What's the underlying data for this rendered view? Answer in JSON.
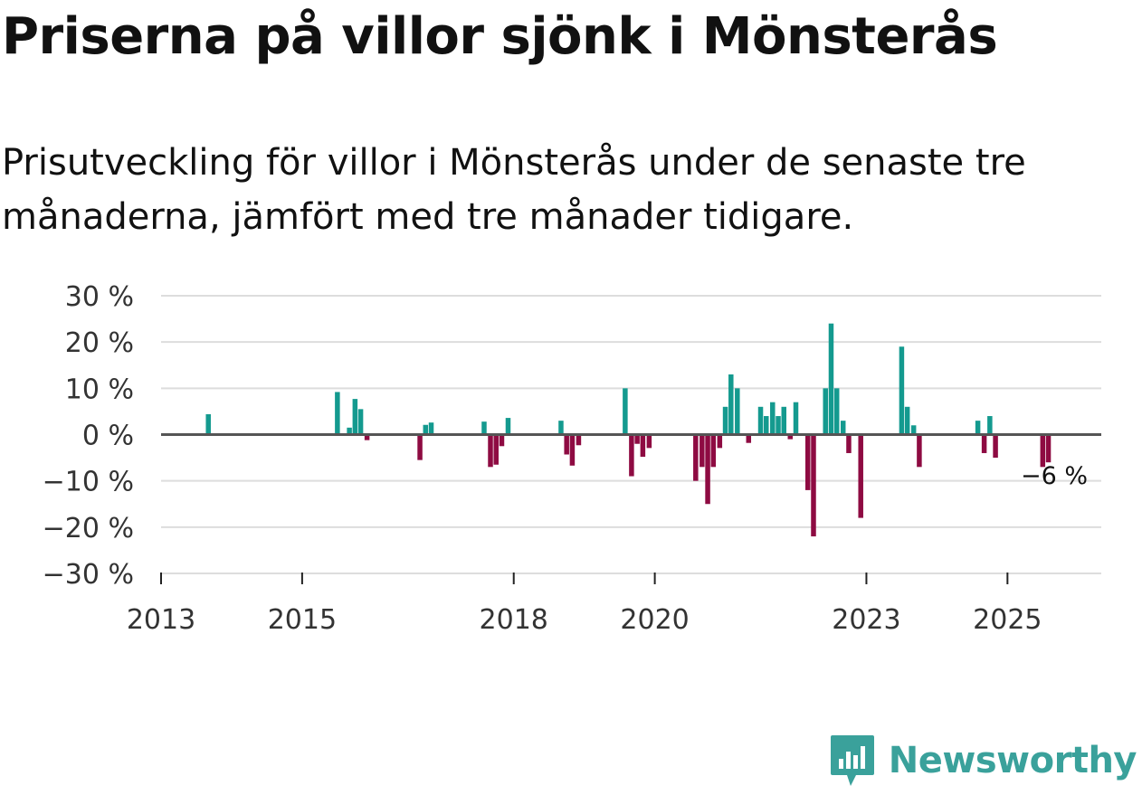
{
  "title": "Priserna på villor sjönk i Mönsterås",
  "subtitle": "Prisutveckling för villor i Mönsterås under de senaste tre månaderna, jämfört med tre månader tidigare.",
  "brand": {
    "name": "Newsworthy"
  },
  "colors": {
    "positive": "#149a8f",
    "negative": "#8e0b42",
    "grid": "#dddddd",
    "zero": "#555555",
    "brand": "#3aa19b"
  },
  "chart_data": {
    "type": "bar",
    "title": "Priserna på villor sjönk i Mönsterås",
    "ylabel": "",
    "xlabel": "",
    "ylim": [
      -30,
      30
    ],
    "yticks": [
      30,
      20,
      10,
      0,
      -10,
      -20,
      -30
    ],
    "ytick_labels": [
      "30 %",
      "20 %",
      "10 %",
      "0 %",
      "−10 %",
      "−20 %",
      "−30 %"
    ],
    "xlim": [
      2013.0,
      2026.33
    ],
    "xticks": [
      2013,
      2015,
      2018,
      2020,
      2023,
      2025
    ],
    "xtick_labels": [
      "2013",
      "2015",
      "2018",
      "2020",
      "2023",
      "2025"
    ],
    "annotation": {
      "x": 2025.58,
      "y": -6,
      "label": "−6 %"
    },
    "series": [
      {
        "name": "Prisutveckling",
        "points": [
          {
            "x": 2013.67,
            "y": 4.4
          },
          {
            "x": 2015.5,
            "y": 9.2
          },
          {
            "x": 2015.67,
            "y": 1.5
          },
          {
            "x": 2015.75,
            "y": 7.7
          },
          {
            "x": 2015.83,
            "y": 5.5
          },
          {
            "x": 2015.92,
            "y": -1.2
          },
          {
            "x": 2016.67,
            "y": -5.5
          },
          {
            "x": 2016.75,
            "y": 2.1
          },
          {
            "x": 2016.83,
            "y": 2.6
          },
          {
            "x": 2017.58,
            "y": 2.8
          },
          {
            "x": 2017.67,
            "y": -7.0
          },
          {
            "x": 2017.75,
            "y": -6.5
          },
          {
            "x": 2017.83,
            "y": -2.5
          },
          {
            "x": 2017.92,
            "y": 3.6
          },
          {
            "x": 2018.67,
            "y": 3.0
          },
          {
            "x": 2018.75,
            "y": -4.3
          },
          {
            "x": 2018.83,
            "y": -6.7
          },
          {
            "x": 2018.92,
            "y": -2.3
          },
          {
            "x": 2019.58,
            "y": 10.0
          },
          {
            "x": 2019.67,
            "y": -9.0
          },
          {
            "x": 2019.75,
            "y": -2.0
          },
          {
            "x": 2019.83,
            "y": -4.8
          },
          {
            "x": 2019.92,
            "y": -2.9
          },
          {
            "x": 2020.58,
            "y": -10.0
          },
          {
            "x": 2020.67,
            "y": -7.0
          },
          {
            "x": 2020.75,
            "y": -15.0
          },
          {
            "x": 2020.83,
            "y": -7.0
          },
          {
            "x": 2020.92,
            "y": -2.9
          },
          {
            "x": 2021.0,
            "y": 6.0
          },
          {
            "x": 2021.08,
            "y": 13.0
          },
          {
            "x": 2021.17,
            "y": 10.0
          },
          {
            "x": 2021.33,
            "y": -1.8
          },
          {
            "x": 2021.5,
            "y": 6.0
          },
          {
            "x": 2021.58,
            "y": 4.0
          },
          {
            "x": 2021.67,
            "y": 7.0
          },
          {
            "x": 2021.75,
            "y": 4.0
          },
          {
            "x": 2021.83,
            "y": 6.0
          },
          {
            "x": 2021.92,
            "y": -1.0
          },
          {
            "x": 2022.0,
            "y": 7.0
          },
          {
            "x": 2022.17,
            "y": -12.0
          },
          {
            "x": 2022.25,
            "y": -22.0
          },
          {
            "x": 2022.42,
            "y": 10.0
          },
          {
            "x": 2022.5,
            "y": 24.0
          },
          {
            "x": 2022.58,
            "y": 10.0
          },
          {
            "x": 2022.67,
            "y": 3.0
          },
          {
            "x": 2022.75,
            "y": -4.0
          },
          {
            "x": 2022.92,
            "y": -18.0
          },
          {
            "x": 2023.5,
            "y": 19.0
          },
          {
            "x": 2023.58,
            "y": 6.0
          },
          {
            "x": 2023.67,
            "y": 2.0
          },
          {
            "x": 2023.75,
            "y": -7.0
          },
          {
            "x": 2024.58,
            "y": 3.0
          },
          {
            "x": 2024.67,
            "y": -4.0
          },
          {
            "x": 2024.75,
            "y": 4.0
          },
          {
            "x": 2024.83,
            "y": -5.0
          },
          {
            "x": 2025.5,
            "y": -7.0
          },
          {
            "x": 2025.58,
            "y": -6.0
          }
        ]
      }
    ]
  }
}
